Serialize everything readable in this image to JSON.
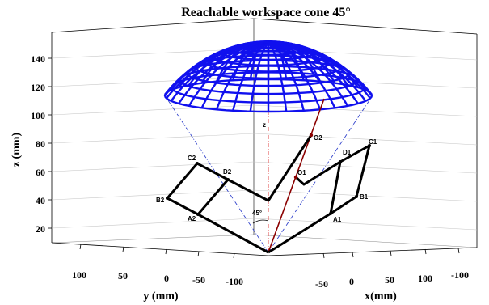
{
  "chart_data": {
    "type": "3d-line",
    "title": "Reachable workspace cone 45°",
    "zlabel": "z (mm)",
    "ylabel": "y (mm)",
    "xlabel": "x(mm)",
    "z_ticks": [
      "20",
      "40",
      "60",
      "80",
      "100",
      "120",
      "140"
    ],
    "y_ticks": [
      "100",
      "50",
      "0",
      "-50",
      "-100"
    ],
    "x_ticks": [
      "-50",
      "0",
      "50",
      "100",
      "-100"
    ],
    "cone_angle_label": "45°",
    "axis_marker_label": "z",
    "cone_apex_z": 0,
    "cone_half_angle_deg": 45,
    "dome_z_range": [
      105,
      150
    ],
    "points": [
      {
        "name": "O1",
        "z": 55
      },
      {
        "name": "O2",
        "z": 83
      },
      {
        "name": "A1",
        "z": 28
      },
      {
        "name": "A2",
        "z": 27
      },
      {
        "name": "B1",
        "z": 39
      },
      {
        "name": "B2",
        "z": 39
      },
      {
        "name": "C1",
        "z": 76
      },
      {
        "name": "C2",
        "z": 65
      },
      {
        "name": "D1",
        "z": 66
      },
      {
        "name": "D2",
        "z": 53
      }
    ],
    "colors": {
      "dome": "#1010ee",
      "mechanism": "#000000",
      "axis": "#8b0000",
      "cone_edges": "#3344cc",
      "z_axis": "#dd3333"
    }
  }
}
